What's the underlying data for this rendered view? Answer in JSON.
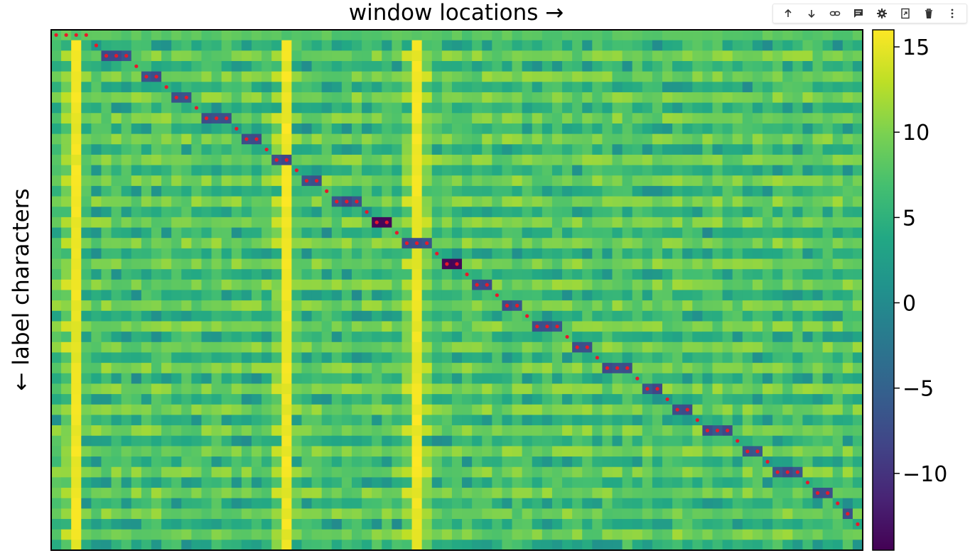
{
  "chart_data": {
    "type": "heatmap",
    "title": "window locations →",
    "xlabel": "",
    "ylabel": "← label characters",
    "n_cols": 81,
    "n_rows": 50,
    "colormap": "viridis",
    "color_range": [
      -14.5,
      16
    ],
    "colorbar_ticks": [
      15,
      10,
      5,
      0,
      -5,
      -10
    ],
    "colorbar_tick_labels": [
      "15",
      "10",
      "5",
      "0",
      "−5",
      "−10"
    ],
    "bright_columns": [
      2,
      23,
      36
    ],
    "alignment_path": {
      "color": "#e8182a",
      "marker_col_groups": [
        [
          0,
          1,
          2,
          3
        ],
        [
          4
        ],
        [
          5,
          6,
          7
        ],
        [
          8
        ],
        [
          9,
          10
        ],
        [
          11
        ],
        [
          12,
          13
        ],
        [
          14
        ],
        [
          15,
          16,
          17
        ],
        [
          18
        ],
        [
          19,
          20
        ],
        [
          21
        ],
        [
          22,
          23
        ],
        [
          24
        ],
        [
          25,
          26
        ],
        [
          27
        ],
        [
          28,
          29,
          30
        ],
        [
          31
        ],
        [
          32,
          33
        ],
        [
          34
        ],
        [
          35,
          36,
          37
        ],
        [
          38
        ],
        [
          39,
          40
        ],
        [
          41
        ],
        [
          42,
          43
        ],
        [
          44
        ],
        [
          45,
          46
        ],
        [
          47
        ],
        [
          48,
          49,
          50
        ],
        [
          51
        ],
        [
          52,
          53
        ],
        [
          54
        ],
        [
          55,
          56,
          57
        ],
        [
          58
        ],
        [
          59,
          60
        ],
        [
          61
        ],
        [
          62,
          63
        ],
        [
          64
        ],
        [
          65,
          66,
          67
        ],
        [
          68
        ],
        [
          69,
          70
        ],
        [
          71
        ],
        [
          72,
          73,
          74
        ],
        [
          75
        ],
        [
          76,
          77
        ],
        [
          78
        ],
        [
          79
        ],
        [
          80
        ]
      ],
      "dark_cell_rows": [
        2,
        4,
        6,
        8,
        10,
        12,
        14,
        16,
        18,
        20,
        22,
        24,
        26,
        28,
        30,
        32,
        34,
        36,
        38,
        40,
        42,
        44,
        46
      ],
      "extreme_min_rows": [
        18,
        22
      ]
    }
  },
  "toolbar": {
    "items": [
      {
        "name": "move-up-icon",
        "glyph": "↑"
      },
      {
        "name": "move-down-icon",
        "glyph": "↓"
      },
      {
        "name": "link-icon",
        "glyph": "link"
      },
      {
        "name": "comment-icon",
        "glyph": "comment"
      },
      {
        "name": "gear-icon",
        "glyph": "gear"
      },
      {
        "name": "expand-icon",
        "glyph": "expand"
      },
      {
        "name": "trash-icon",
        "glyph": "trash"
      },
      {
        "name": "more-icon",
        "glyph": "more"
      }
    ]
  }
}
